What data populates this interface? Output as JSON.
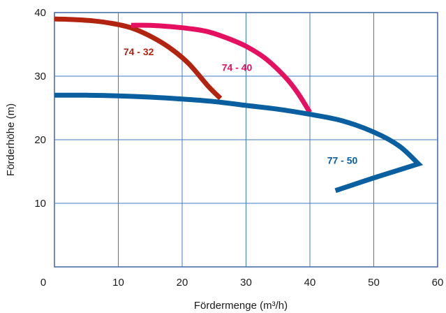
{
  "chart_data": {
    "type": "line",
    "xlabel": "Fördermenge (m³/h)",
    "ylabel": "Förderhöhe (m)",
    "xlim": [
      0,
      60
    ],
    "ylim": [
      0,
      40
    ],
    "xticks": [
      "0",
      "10",
      "20",
      "30",
      "40",
      "50",
      "60"
    ],
    "yticks": [
      "10",
      "20",
      "30",
      "40"
    ],
    "grid": true,
    "series": [
      {
        "name": "74 - 32",
        "color": "#b32410",
        "x": [
          0,
          3,
          6,
          9,
          12,
          15,
          18,
          21,
          24,
          26
        ],
        "y": [
          39,
          38.9,
          38.7,
          38.3,
          37.6,
          36.3,
          34.5,
          32,
          28.5,
          26.5
        ]
      },
      {
        "name": "74 - 40",
        "color": "#e5105f",
        "x": [
          12,
          15,
          18,
          21,
          24,
          27,
          30,
          33,
          36,
          38,
          40
        ],
        "y": [
          38,
          38,
          37.8,
          37.5,
          37,
          36,
          34.7,
          32.8,
          30,
          27.5,
          24.3
        ]
      },
      {
        "name": "77 - 50",
        "color": "#0a5fa0",
        "x": [
          0,
          5,
          10,
          15,
          20,
          25,
          30,
          35,
          40,
          45,
          50,
          54,
          57,
          50,
          44
        ],
        "y": [
          27,
          27,
          26.9,
          26.7,
          26.4,
          26,
          25.4,
          24.8,
          24,
          23,
          21.2,
          19,
          16.2,
          14,
          12
        ]
      }
    ]
  }
}
